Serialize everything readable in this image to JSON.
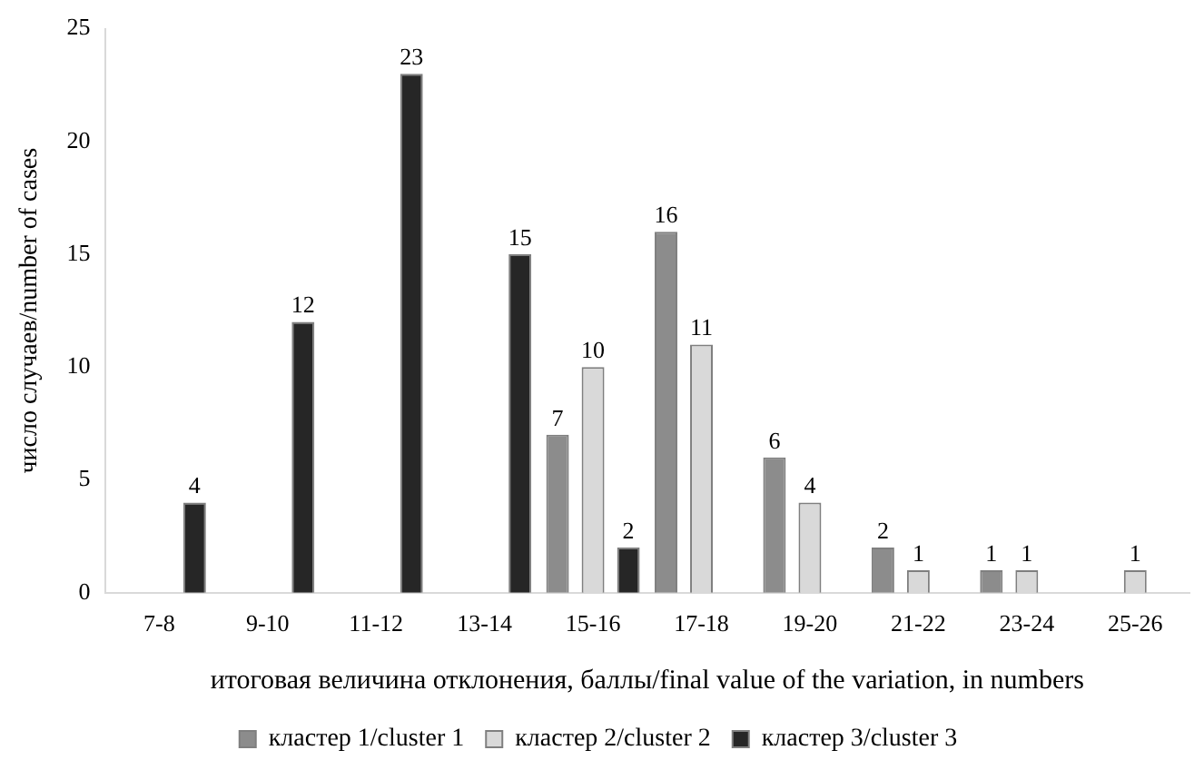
{
  "chart_data": {
    "type": "bar",
    "xlabel": "итоговая величина отклонения, баллы/final value of the variation, in numbers",
    "ylabel": "число случаев/number of cases",
    "categories": [
      "7-8",
      "9-10",
      "11-12",
      "13-14",
      "15-16",
      "17-18",
      "19-20",
      "21-22",
      "23-24",
      "25-26"
    ],
    "series": [
      {
        "name": "кластер 1/cluster 1",
        "color": "#8c8c8c",
        "values": [
          0,
          0,
          0,
          0,
          7,
          16,
          6,
          2,
          1,
          0
        ],
        "value_labels": [
          null,
          null,
          null,
          null,
          "7",
          "16",
          "6",
          "2",
          "1",
          null
        ]
      },
      {
        "name": "кластер 2/cluster 2",
        "color": "#d9d9d9",
        "values": [
          0,
          0,
          0,
          0,
          10,
          11,
          4,
          1,
          1,
          1
        ],
        "value_labels": [
          null,
          null,
          null,
          null,
          "10",
          "11",
          "4",
          "1",
          "1",
          "1"
        ]
      },
      {
        "name": "кластер 3/cluster 3",
        "color": "#262626",
        "values": [
          4,
          12,
          23,
          15,
          2,
          0,
          0,
          0,
          0,
          0
        ],
        "value_labels": [
          "4",
          "12",
          "23",
          "15",
          "2",
          null,
          null,
          null,
          null,
          null
        ]
      }
    ],
    "ylim": [
      0,
      25
    ],
    "yticks": [
      0,
      5,
      10,
      15,
      20,
      25
    ],
    "grid": false,
    "legend": "bottom"
  }
}
